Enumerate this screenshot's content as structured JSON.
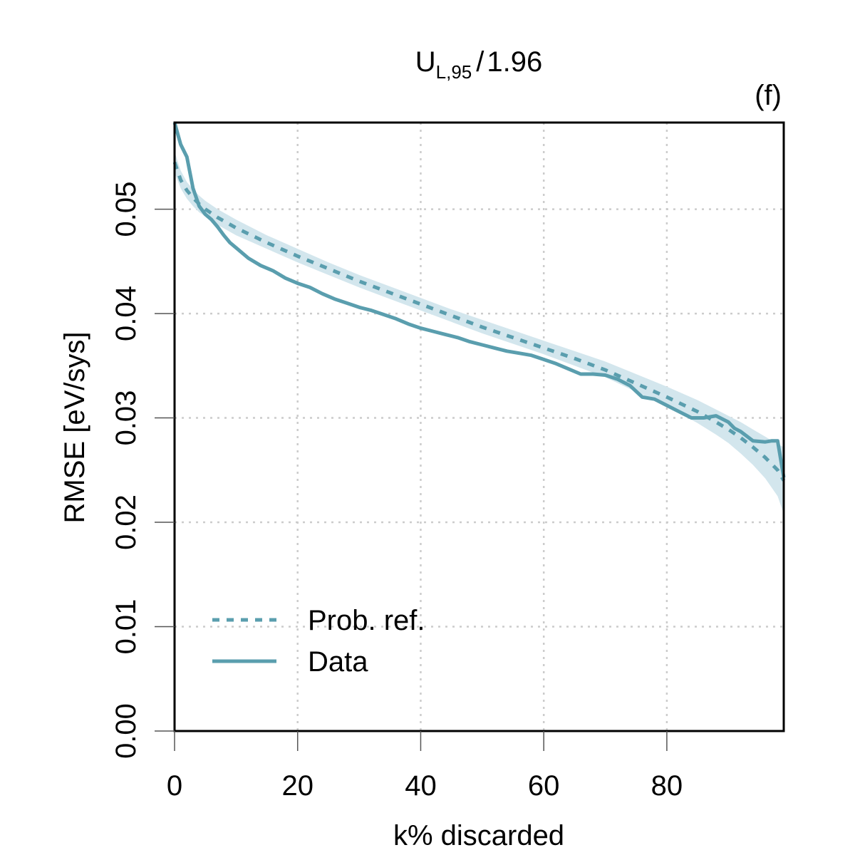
{
  "chart_data": {
    "type": "line",
    "title": {
      "base": "U",
      "subscript": "L,95",
      "slash": "/",
      "divisor": "1.96"
    },
    "panel_tag": "(f)",
    "xlabel": "k% discarded",
    "ylabel": "RMSE [eV/sys]",
    "xlim": [
      0,
      99
    ],
    "ylim": [
      0,
      0.0583
    ],
    "x_ticks": [
      0,
      20,
      40,
      60,
      80
    ],
    "x_tick_labels": [
      "0",
      "20",
      "40",
      "60",
      "80"
    ],
    "y_ticks": [
      0,
      0.01,
      0.02,
      0.03,
      0.04,
      0.05
    ],
    "y_tick_labels": [
      "0.00",
      "0.01",
      "0.02",
      "0.03",
      "0.04",
      "0.05"
    ],
    "grid": true,
    "legend_position": "bottom-left",
    "colors": {
      "series": "#5a9eae",
      "band": "#d3e6ed",
      "grid": "#cccccc",
      "frame": "#000000"
    },
    "series": [
      {
        "name": "Prob. ref.",
        "style": "dashed",
        "x": [
          0,
          1,
          2,
          3,
          4,
          5,
          7,
          10,
          15,
          20,
          25,
          30,
          35,
          40,
          45,
          50,
          55,
          60,
          65,
          70,
          75,
          80,
          85,
          88,
          90,
          92,
          94,
          96,
          98,
          99
        ],
        "y": [
          0.0545,
          0.0528,
          0.0518,
          0.0511,
          0.0505,
          0.05,
          0.0492,
          0.0482,
          0.0468,
          0.0455,
          0.0443,
          0.0431,
          0.042,
          0.0409,
          0.0398,
          0.0387,
          0.0377,
          0.0367,
          0.0357,
          0.0346,
          0.0333,
          0.032,
          0.0306,
          0.0296,
          0.0289,
          0.0281,
          0.0272,
          0.0262,
          0.025,
          0.024
        ]
      },
      {
        "name": "Data",
        "style": "solid",
        "x": [
          0,
          1,
          2,
          3,
          4,
          5,
          6,
          7,
          8,
          9,
          10,
          12,
          14,
          16,
          18,
          20,
          22,
          24,
          26,
          28,
          30,
          32,
          34,
          36,
          38,
          40,
          42,
          44,
          46,
          48,
          50,
          52,
          54,
          56,
          58,
          60,
          62,
          64,
          66,
          68,
          70,
          72,
          74,
          76,
          78,
          80,
          82,
          84,
          86,
          88,
          90,
          91,
          92,
          94,
          96,
          97,
          98,
          99
        ],
        "y": [
          0.0583,
          0.0562,
          0.055,
          0.052,
          0.0503,
          0.0495,
          0.049,
          0.0483,
          0.0475,
          0.0468,
          0.0463,
          0.0453,
          0.0446,
          0.0441,
          0.0434,
          0.0429,
          0.0425,
          0.0419,
          0.0414,
          0.041,
          0.0406,
          0.0403,
          0.0399,
          0.0395,
          0.039,
          0.0386,
          0.0383,
          0.038,
          0.0377,
          0.0373,
          0.037,
          0.0367,
          0.0364,
          0.0362,
          0.036,
          0.0356,
          0.0352,
          0.0347,
          0.0342,
          0.0342,
          0.0341,
          0.0337,
          0.0331,
          0.032,
          0.0318,
          0.0312,
          0.0306,
          0.03,
          0.03,
          0.0302,
          0.0296,
          0.029,
          0.0287,
          0.0278,
          0.0277,
          0.0278,
          0.0278,
          0.0243
        ]
      }
    ],
    "band": {
      "name": "Prob. ref. interval",
      "x": [
        0,
        1,
        2,
        3,
        4,
        5,
        7,
        10,
        15,
        20,
        25,
        30,
        35,
        40,
        45,
        50,
        55,
        60,
        65,
        70,
        75,
        80,
        85,
        88,
        90,
        92,
        94,
        96,
        98,
        99
      ],
      "lower": [
        0.0535,
        0.052,
        0.051,
        0.0503,
        0.0497,
        0.0493,
        0.0485,
        0.0475,
        0.0462,
        0.0449,
        0.0437,
        0.0425,
        0.0414,
        0.0403,
        0.0392,
        0.0381,
        0.0371,
        0.0361,
        0.035,
        0.0339,
        0.0325,
        0.0311,
        0.0295,
        0.0284,
        0.0276,
        0.0266,
        0.0255,
        0.0242,
        0.0225,
        0.0208
      ],
      "upper": [
        0.0555,
        0.0537,
        0.0526,
        0.0519,
        0.0513,
        0.0508,
        0.05,
        0.049,
        0.0475,
        0.0462,
        0.0449,
        0.0437,
        0.0426,
        0.0415,
        0.0404,
        0.0394,
        0.0384,
        0.0374,
        0.0364,
        0.0354,
        0.0342,
        0.033,
        0.0317,
        0.0308,
        0.0302,
        0.0296,
        0.0289,
        0.0282,
        0.0275,
        0.0272
      ]
    }
  }
}
